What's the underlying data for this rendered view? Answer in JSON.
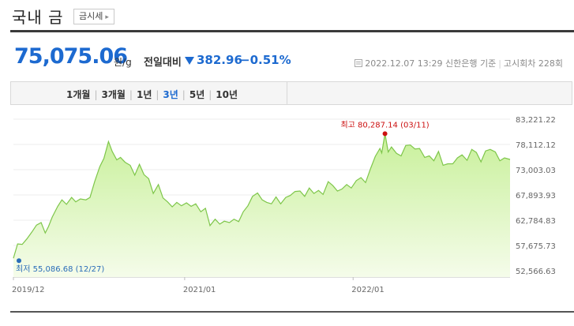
{
  "header": {
    "title": "국내 금",
    "tag_label": "금시세",
    "tag_arrow_icon": "chevron-right-icon"
  },
  "price": {
    "value": "75,075.06",
    "unit": "원/g",
    "compare_label": "전일대비",
    "change_icon": "down-triangle-icon",
    "change": "382.96",
    "change_pct": "−0.51%",
    "down_color": "#1d6ad0"
  },
  "meta": {
    "icon": "document-icon",
    "datetime": "2022.12.07 13:29",
    "source": "신한은행 기준",
    "notice": "고시회차 228회"
  },
  "tabs": [
    "1개월",
    "3개월",
    "1년",
    "3년",
    "5년",
    "10년"
  ],
  "active_tab": "3년",
  "chart_data": {
    "type": "area",
    "ylim": [
      52566.63,
      83221.22
    ],
    "y_ticks": [
      "83,221.22",
      "78,112.12",
      "73,003.03",
      "67,893.93",
      "62,784.83",
      "57,675.73",
      "52,566.63"
    ],
    "x_ticks": [
      "2019/12",
      "2021/01",
      "2022/01"
    ],
    "fill_top_color": "#c8f09a",
    "fill_bottom_color": "#f5fcea",
    "line_color": "#7ec64a",
    "annotations": {
      "max": {
        "label": "최고 80,287.14 (03/11)",
        "value": 80287.14,
        "date": "2022-03-11",
        "color": "#cc1111"
      },
      "min": {
        "label": "최저 55,086.68 (12/27)",
        "value": 55086.68,
        "date": "2019-12-27",
        "color": "#2a6db8"
      }
    },
    "series": [
      {
        "x": [
          "2019-12-27",
          "2020-01-05",
          "2020-01-15",
          "2020-01-25",
          "2020-02-05",
          "2020-02-15",
          "2020-02-25",
          "2020-03-05",
          "2020-03-12",
          "2020-03-20",
          "2020-04-01",
          "2020-04-10",
          "2020-04-20",
          "2020-05-01",
          "2020-05-10",
          "2020-05-20",
          "2020-06-01",
          "2020-06-10",
          "2020-06-20",
          "2020-07-01",
          "2020-07-10",
          "2020-07-20",
          "2020-07-28",
          "2020-08-07",
          "2020-08-15",
          "2020-08-25",
          "2020-09-05",
          "2020-09-15",
          "2020-09-25",
          "2020-10-05",
          "2020-10-15",
          "2020-10-25",
          "2020-11-05",
          "2020-11-15",
          "2020-11-25",
          "2020-12-05",
          "2020-12-15",
          "2020-12-25",
          "2021-01-05",
          "2021-01-15",
          "2021-01-25",
          "2021-02-05",
          "2021-02-15",
          "2021-02-25",
          "2021-03-08",
          "2021-03-18",
          "2021-03-28",
          "2021-04-08",
          "2021-04-18",
          "2021-04-28",
          "2021-05-08",
          "2021-05-18",
          "2021-05-28",
          "2021-06-08",
          "2021-06-18",
          "2021-06-28",
          "2021-07-08",
          "2021-07-18",
          "2021-07-28",
          "2021-08-08",
          "2021-08-18",
          "2021-08-28",
          "2021-09-08",
          "2021-09-18",
          "2021-09-28",
          "2021-10-08",
          "2021-10-18",
          "2021-10-28",
          "2021-11-08",
          "2021-11-18",
          "2021-11-28",
          "2021-12-08",
          "2021-12-18",
          "2021-12-28",
          "2022-01-08",
          "2022-01-18",
          "2022-01-28",
          "2022-02-08",
          "2022-02-18",
          "2022-02-28",
          "2022-03-04",
          "2022-03-11",
          "2022-03-18",
          "2022-03-25",
          "2022-04-05",
          "2022-04-15",
          "2022-04-25",
          "2022-05-05",
          "2022-05-15",
          "2022-05-25",
          "2022-06-05",
          "2022-06-15",
          "2022-06-25",
          "2022-07-05",
          "2022-07-15",
          "2022-07-25",
          "2022-08-05",
          "2022-08-15",
          "2022-08-25",
          "2022-09-05",
          "2022-09-15",
          "2022-09-25",
          "2022-10-05",
          "2022-10-15",
          "2022-10-25",
          "2022-11-05",
          "2022-11-15",
          "2022-11-25",
          "2022-12-07"
        ],
        "y": [
          55086.68,
          58000,
          57900,
          59000,
          60400,
          61800,
          62300,
          60200,
          61500,
          63400,
          65600,
          66900,
          66000,
          67400,
          66500,
          67100,
          66900,
          67400,
          70600,
          73600,
          75300,
          78700,
          76700,
          75000,
          75500,
          74500,
          73900,
          71900,
          74100,
          72000,
          71200,
          68200,
          70000,
          67300,
          66500,
          65500,
          66400,
          65700,
          66300,
          65600,
          66100,
          64500,
          65200,
          61700,
          63000,
          62000,
          62600,
          62300,
          63000,
          62500,
          64500,
          65700,
          67600,
          68300,
          66900,
          66400,
          66100,
          67500,
          66100,
          67400,
          67800,
          68600,
          68700,
          67600,
          69300,
          68200,
          68800,
          68000,
          70600,
          69800,
          68700,
          69100,
          70000,
          69300,
          70800,
          71400,
          70400,
          73300,
          75700,
          77300,
          76400,
          80287.14,
          76600,
          77600,
          76300,
          75800,
          77900,
          78000,
          77200,
          77300,
          75500,
          75800,
          74800,
          76700,
          73900,
          74200,
          74200,
          75400,
          76000,
          74900,
          77100,
          76500,
          74600,
          76800,
          77100,
          76600,
          74800,
          75400,
          75075.06
        ]
      }
    ]
  }
}
